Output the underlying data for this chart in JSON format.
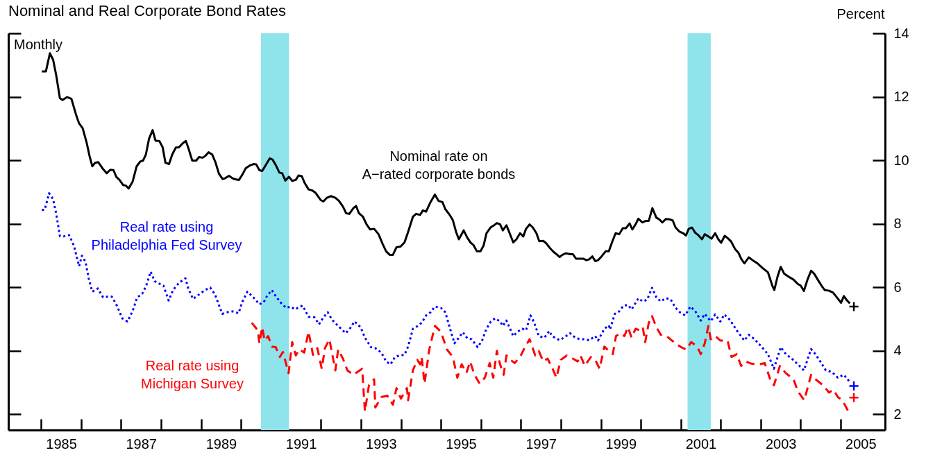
{
  "chart_data": {
    "type": "line",
    "title": "Nominal and Real Corporate Bond Rates",
    "annotations": [
      "Monthly",
      "Percent"
    ],
    "xlim": [
      1984.18,
      2006.11
    ],
    "xticks": [
      {
        "value": 1985,
        "label": null
      },
      {
        "value": 1986,
        "label": null
      },
      {
        "value": 1987,
        "label": null
      },
      {
        "value": 1988,
        "label": null
      },
      {
        "value": 1989,
        "label": null
      },
      {
        "value": 1990,
        "label": null
      },
      {
        "value": 1991,
        "label": null
      },
      {
        "value": 1992,
        "label": null
      },
      {
        "value": 1993,
        "label": null
      },
      {
        "value": 1994,
        "label": null
      },
      {
        "value": 1995,
        "label": null
      },
      {
        "value": 1996,
        "label": null
      },
      {
        "value": 1997,
        "label": null
      },
      {
        "value": 1998,
        "label": null
      },
      {
        "value": 1999,
        "label": null
      },
      {
        "value": 2000,
        "label": null
      },
      {
        "value": 2001,
        "label": null
      },
      {
        "value": 2002,
        "label": null
      },
      {
        "value": 2003,
        "label": null
      },
      {
        "value": 2004,
        "label": null
      },
      {
        "value": 2005,
        "label": null
      },
      {
        "value": 1985.5,
        "label": "1985"
      },
      {
        "value": 1987.5,
        "label": "1987"
      },
      {
        "value": 1989.5,
        "label": "1989"
      },
      {
        "value": 1991.5,
        "label": "1991"
      },
      {
        "value": 1993.5,
        "label": "1993"
      },
      {
        "value": 1995.5,
        "label": "1995"
      },
      {
        "value": 1997.5,
        "label": "1997"
      },
      {
        "value": 1999.5,
        "label": "1999"
      },
      {
        "value": 2001.5,
        "label": "2001"
      },
      {
        "value": 2003.5,
        "label": "2003"
      },
      {
        "value": 2005.5,
        "label": "2005"
      }
    ],
    "ylim": [
      1.5,
      14
    ],
    "yticks": [
      2,
      4,
      6,
      8,
      10,
      12,
      14
    ],
    "bands": [
      {
        "axis": "x",
        "from": 1990.5,
        "to": 1991.2,
        "color": "#8fe3eb"
      },
      {
        "axis": "x",
        "from": 2001.17,
        "to": 2001.75,
        "color": "#8fe3eb"
      }
    ],
    "series": [
      {
        "name": "Nominal rate on A−rated corporate bonds",
        "color": "#000000",
        "line_style": "solid",
        "x": [
          1985.02,
          1985.12,
          1985.22,
          1985.3,
          1985.38,
          1985.47,
          1985.54,
          1985.65,
          1985.76,
          1985.87,
          1985.95,
          1986.04,
          1986.14,
          1986.21,
          1986.28,
          1986.35,
          1986.43,
          1986.55,
          1986.64,
          1986.73,
          1986.81,
          1986.88,
          1986.96,
          1987.05,
          1987.12,
          1987.19,
          1987.29,
          1987.39,
          1987.48,
          1987.55,
          1987.62,
          1987.7,
          1987.79,
          1987.86,
          1987.96,
          1988.04,
          1988.11,
          1988.2,
          1988.28,
          1988.37,
          1988.45,
          1988.54,
          1988.62,
          1988.69,
          1988.78,
          1988.88,
          1988.95,
          1989.04,
          1989.11,
          1989.19,
          1989.28,
          1989.36,
          1989.45,
          1989.54,
          1989.6,
          1989.7,
          1989.79,
          1989.86,
          1989.95,
          1990.03,
          1990.12,
          1990.23,
          1990.31,
          1990.38,
          1990.46,
          1990.53,
          1990.62,
          1990.72,
          1990.79,
          1990.87,
          1990.96,
          1991.03,
          1991.11,
          1991.2,
          1991.28,
          1991.37,
          1991.44,
          1991.52,
          1991.59,
          1991.69,
          1991.78,
          1991.86,
          1991.99,
          1992.06,
          1992.15,
          1992.25,
          1992.36,
          1992.45,
          1992.55,
          1992.63,
          1992.71,
          1992.81,
          1992.88,
          1992.95,
          1993.05,
          1993.14,
          1993.23,
          1993.33,
          1993.44,
          1993.54,
          1993.63,
          1993.72,
          1993.8,
          1993.89,
          1993.99,
          1994.09,
          1994.18,
          1994.3,
          1994.38,
          1994.48,
          1994.55,
          1994.63,
          1994.74,
          1994.85,
          1994.94,
          1995.04,
          1995.11,
          1995.23,
          1995.3,
          1995.38,
          1995.45,
          1995.57,
          1995.66,
          1995.74,
          1995.82,
          1995.9,
          1995.99,
          1996.07,
          1996.14,
          1996.24,
          1996.33,
          1996.4,
          1996.48,
          1996.55,
          1996.64,
          1996.72,
          1996.81,
          1996.89,
          1996.98,
          1997.06,
          1997.13,
          1997.22,
          1997.3,
          1997.39,
          1997.46,
          1997.56,
          1997.63,
          1997.73,
          1997.82,
          1997.89,
          1997.97,
          1998.04,
          1998.13,
          1998.23,
          1998.3,
          1998.38,
          1998.47,
          1998.56,
          1998.64,
          1998.71,
          1998.79,
          1998.86,
          1998.93,
          1999.02,
          1999.12,
          1999.2,
          1999.28,
          1999.37,
          1999.46,
          1999.55,
          1999.63,
          1999.72,
          1999.79,
          1999.87,
          1999.94,
          2000.04,
          2000.13,
          2000.2,
          2000.29,
          2000.39,
          2000.46,
          2000.54,
          2000.63,
          2000.72,
          2000.8,
          2000.87,
          2000.96,
          2001.06,
          2001.13,
          2001.2,
          2001.28,
          2001.36,
          2001.43,
          2001.53,
          2001.6,
          2001.69,
          2001.77,
          2001.86,
          2001.94,
          2002.01,
          2002.1,
          2002.18,
          2002.26,
          2002.36,
          2002.44,
          2002.51,
          2002.59,
          2002.7,
          2002.81,
          2002.92,
          2003.04,
          2003.18,
          2003.29,
          2003.34,
          2003.42,
          2003.5,
          2003.59,
          2003.7,
          2003.82,
          2003.93,
          2004.0,
          2004.08,
          2004.17,
          2004.26,
          2004.34,
          2004.45,
          2004.52,
          2004.6,
          2004.71,
          2004.81,
          2004.91,
          2005.01,
          2005.08,
          2005.16,
          2005.23
        ],
        "values": [
          12.8,
          12.8,
          13.37,
          13.17,
          12.66,
          11.95,
          11.9,
          11.99,
          11.93,
          11.45,
          11.16,
          11.01,
          10.55,
          10.14,
          9.81,
          9.92,
          9.94,
          9.72,
          9.59,
          9.7,
          9.69,
          9.48,
          9.38,
          9.22,
          9.2,
          9.11,
          9.33,
          9.81,
          9.96,
          9.99,
          10.18,
          10.68,
          10.95,
          10.62,
          10.6,
          10.41,
          9.92,
          9.88,
          10.18,
          10.4,
          10.41,
          10.53,
          10.61,
          10.36,
          9.99,
          9.99,
          10.1,
          10.08,
          10.14,
          10.25,
          10.18,
          9.94,
          9.57,
          9.41,
          9.43,
          9.51,
          9.43,
          9.4,
          9.38,
          9.54,
          9.75,
          9.84,
          9.88,
          9.87,
          9.69,
          9.66,
          9.85,
          10.06,
          10.02,
          9.85,
          9.61,
          9.59,
          9.36,
          9.48,
          9.35,
          9.38,
          9.52,
          9.5,
          9.29,
          9.08,
          9.05,
          8.98,
          8.75,
          8.7,
          8.82,
          8.87,
          8.82,
          8.72,
          8.54,
          8.33,
          8.31,
          8.49,
          8.56,
          8.33,
          8.22,
          7.98,
          7.82,
          7.84,
          7.67,
          7.37,
          7.13,
          7.02,
          7.02,
          7.26,
          7.28,
          7.41,
          7.74,
          8.22,
          8.31,
          8.28,
          8.42,
          8.38,
          8.68,
          8.92,
          8.72,
          8.68,
          8.46,
          8.26,
          8.11,
          7.74,
          7.51,
          7.79,
          7.56,
          7.41,
          7.32,
          7.13,
          7.13,
          7.32,
          7.7,
          7.88,
          7.95,
          8.02,
          7.98,
          7.79,
          7.95,
          7.7,
          7.41,
          7.51,
          7.7,
          7.6,
          7.84,
          7.98,
          7.88,
          7.7,
          7.45,
          7.46,
          7.39,
          7.23,
          7.11,
          7.04,
          6.95,
          7.02,
          7.07,
          7.04,
          7.04,
          6.9,
          6.9,
          6.9,
          6.85,
          6.88,
          6.97,
          6.82,
          6.85,
          6.97,
          7.13,
          7.13,
          7.41,
          7.7,
          7.67,
          7.86,
          7.86,
          8.01,
          7.82,
          7.98,
          8.16,
          8.04,
          8.09,
          8.09,
          8.49,
          8.19,
          8.14,
          8.04,
          8.15,
          8.14,
          8.1,
          7.88,
          7.76,
          7.7,
          7.63,
          7.84,
          7.88,
          7.72,
          7.65,
          7.51,
          7.67,
          7.6,
          7.53,
          7.7,
          7.51,
          7.4,
          7.62,
          7.54,
          7.44,
          7.2,
          7.09,
          6.9,
          6.75,
          6.94,
          6.84,
          6.75,
          6.61,
          6.47,
          6.05,
          5.91,
          6.33,
          6.64,
          6.42,
          6.33,
          6.24,
          6.1,
          6.05,
          5.88,
          6.24,
          6.52,
          6.42,
          6.19,
          6.05,
          5.91,
          5.89,
          5.83,
          5.67,
          5.51,
          5.72,
          5.58,
          5.49
        ]
      },
      {
        "name": "Real rate using Philadelphia Fed Survey",
        "color": "#0000ff",
        "line_style": "dotted",
        "x": [
          1985.02,
          1985.09,
          1985.2,
          1985.3,
          1985.38,
          1985.47,
          1985.56,
          1985.7,
          1985.82,
          1985.95,
          1986.02,
          1986.11,
          1986.19,
          1986.28,
          1986.42,
          1986.55,
          1986.66,
          1986.77,
          1986.88,
          1987.03,
          1987.16,
          1987.29,
          1987.4,
          1987.53,
          1987.63,
          1987.74,
          1987.84,
          1987.96,
          1988.06,
          1988.19,
          1988.3,
          1988.45,
          1988.61,
          1988.68,
          1988.8,
          1988.95,
          1989.1,
          1989.23,
          1989.35,
          1989.53,
          1989.64,
          1989.79,
          1989.94,
          1990.03,
          1990.16,
          1990.31,
          1990.46,
          1990.57,
          1990.65,
          1990.77,
          1990.87,
          1990.98,
          1991.13,
          1991.24,
          1991.35,
          1991.54,
          1991.69,
          1991.84,
          1991.95,
          1992.06,
          1992.17,
          1992.28,
          1992.43,
          1992.62,
          1992.73,
          1992.84,
          1992.99,
          1993.1,
          1993.25,
          1993.36,
          1993.51,
          1993.63,
          1993.74,
          1993.85,
          1993.96,
          1994.09,
          1994.18,
          1994.3,
          1994.41,
          1994.52,
          1994.63,
          1994.74,
          1994.85,
          1995.0,
          1995.11,
          1995.23,
          1995.34,
          1995.45,
          1995.55,
          1995.66,
          1995.77,
          1995.92,
          1996.03,
          1996.14,
          1996.25,
          1996.36,
          1996.48,
          1996.55,
          1996.64,
          1996.81,
          1996.92,
          1997.04,
          1997.13,
          1997.24,
          1997.33,
          1997.45,
          1997.59,
          1997.71,
          1997.78,
          1997.97,
          1998.1,
          1998.23,
          1998.38,
          1998.56,
          1998.71,
          1998.86,
          1998.93,
          1999.09,
          1999.2,
          1999.23,
          1999.35,
          1999.46,
          1999.57,
          1999.68,
          1999.77,
          1999.94,
          2000.05,
          2000.16,
          2000.28,
          2000.39,
          2000.5,
          2000.61,
          2000.74,
          2000.87,
          2000.98,
          2001.11,
          2001.24,
          2001.36,
          2001.5,
          2001.6,
          2001.75,
          2001.86,
          2001.99,
          2002.09,
          2002.23,
          2002.4,
          2002.59,
          2002.7,
          2002.85,
          2003.03,
          2003.18,
          2003.33,
          2003.5,
          2003.63,
          2003.78,
          2003.93,
          2004.08,
          2004.26,
          2004.37,
          2004.49,
          2004.63,
          2004.78,
          2004.93,
          2005.08,
          2005.23
        ],
        "values": [
          8.44,
          8.44,
          8.96,
          8.77,
          8.3,
          7.61,
          7.6,
          7.64,
          7.31,
          6.66,
          6.99,
          6.8,
          6.28,
          5.86,
          5.96,
          5.68,
          5.7,
          5.7,
          5.46,
          5.02,
          4.92,
          5.25,
          5.67,
          5.8,
          6.05,
          6.49,
          6.19,
          6.11,
          6.05,
          5.58,
          5.91,
          6.14,
          6.28,
          5.96,
          5.63,
          5.77,
          5.91,
          5.99,
          5.77,
          5.16,
          5.21,
          5.24,
          5.18,
          5.53,
          5.86,
          5.68,
          5.46,
          5.53,
          5.72,
          5.91,
          5.72,
          5.53,
          5.35,
          5.39,
          5.3,
          5.42,
          5.07,
          5.05,
          4.83,
          5.05,
          5.21,
          4.97,
          4.78,
          4.55,
          4.71,
          4.92,
          4.74,
          4.41,
          4.11,
          4.08,
          3.94,
          3.66,
          3.57,
          3.8,
          3.85,
          3.87,
          4.13,
          4.69,
          4.77,
          4.88,
          5.11,
          5.21,
          5.39,
          5.35,
          5.21,
          4.69,
          4.23,
          4.41,
          4.58,
          4.39,
          4.36,
          4.11,
          4.32,
          4.69,
          4.92,
          5.02,
          4.92,
          4.78,
          4.95,
          4.46,
          4.6,
          4.69,
          4.64,
          5.11,
          4.9,
          4.46,
          4.41,
          4.62,
          4.46,
          4.33,
          4.43,
          4.55,
          4.39,
          4.36,
          4.33,
          4.46,
          4.32,
          4.69,
          4.8,
          4.67,
          5.16,
          5.24,
          5.42,
          5.44,
          5.3,
          5.65,
          5.55,
          5.61,
          5.98,
          5.68,
          5.55,
          5.65,
          5.63,
          5.35,
          5.21,
          5.11,
          5.39,
          5.25,
          4.95,
          5.16,
          4.93,
          5.14,
          4.92,
          5.14,
          4.97,
          4.64,
          4.32,
          4.5,
          4.36,
          4.11,
          3.89,
          3.43,
          4.11,
          3.89,
          3.75,
          3.57,
          3.38,
          4.05,
          3.89,
          3.66,
          3.38,
          3.33,
          3.15,
          3.24,
          3.01
        ]
      },
      {
        "name": "Real rate using Michigan Survey",
        "color": "#ff0000",
        "line_style": "dashed",
        "x": [
          1990.27,
          1990.42,
          1990.46,
          1990.53,
          1990.59,
          1990.68,
          1990.77,
          1990.87,
          1990.97,
          1991.05,
          1991.19,
          1991.28,
          1991.37,
          1991.46,
          1991.58,
          1991.69,
          1991.8,
          1991.91,
          1992.02,
          1992.1,
          1992.21,
          1992.36,
          1992.43,
          1992.55,
          1992.66,
          1992.81,
          1993.03,
          1993.1,
          1993.2,
          1993.33,
          1993.36,
          1993.51,
          1993.66,
          1993.8,
          1993.89,
          1994.0,
          1994.15,
          1994.18,
          1994.3,
          1994.41,
          1994.48,
          1994.52,
          1994.59,
          1994.71,
          1994.85,
          1995.0,
          1995.15,
          1995.3,
          1995.41,
          1995.52,
          1995.64,
          1995.73,
          1995.84,
          1995.97,
          1996.1,
          1996.22,
          1996.31,
          1996.4,
          1996.48,
          1996.57,
          1996.64,
          1996.74,
          1996.85,
          1997.0,
          1997.11,
          1997.22,
          1997.36,
          1997.45,
          1997.56,
          1997.67,
          1997.78,
          1997.89,
          1998.0,
          1998.15,
          1998.3,
          1998.42,
          1998.49,
          1998.6,
          1998.75,
          1998.86,
          1998.97,
          1999.09,
          1999.2,
          1999.3,
          1999.38,
          1999.49,
          1999.59,
          1999.68,
          1999.77,
          1999.87,
          1999.98,
          2000.05,
          2000.11,
          2000.2,
          2000.28,
          2000.39,
          2000.5,
          2000.65,
          2000.74,
          2000.87,
          2001.01,
          2001.14,
          2001.26,
          2001.36,
          2001.43,
          2001.5,
          2001.6,
          2001.69,
          2001.75,
          2001.86,
          2001.99,
          2002.17,
          2002.27,
          2002.4,
          2002.51,
          2002.62,
          2002.77,
          2002.96,
          2003.1,
          2003.25,
          2003.33,
          2003.48,
          2003.63,
          2003.82,
          2003.93,
          2004.09,
          2004.26,
          2004.37,
          2004.56,
          2004.71,
          2004.82,
          2004.93,
          2005.04,
          2005.2
        ],
        "values": [
          4.88,
          4.64,
          4.23,
          4.74,
          4.32,
          4.46,
          4.13,
          4.11,
          3.8,
          3.96,
          3.29,
          4.27,
          3.85,
          4.04,
          3.94,
          4.6,
          3.87,
          4.08,
          3.43,
          4.08,
          4.36,
          3.38,
          4.04,
          3.75,
          3.38,
          3.24,
          3.43,
          2.09,
          2.91,
          3.1,
          2.21,
          2.54,
          2.58,
          2.3,
          2.82,
          2.49,
          2.82,
          2.44,
          3.38,
          3.71,
          3.57,
          3.8,
          2.96,
          4.04,
          4.78,
          4.6,
          4.04,
          3.8,
          3.15,
          3.57,
          3.3,
          3.66,
          3.24,
          2.96,
          3.15,
          3.61,
          3.15,
          3.99,
          3.57,
          3.24,
          3.85,
          3.71,
          3.61,
          3.85,
          4.13,
          4.36,
          3.85,
          3.99,
          3.66,
          3.75,
          3.47,
          3.15,
          3.71,
          3.85,
          3.75,
          3.66,
          3.85,
          3.52,
          3.8,
          3.71,
          3.43,
          4.13,
          3.99,
          3.89,
          4.46,
          4.55,
          4.46,
          4.74,
          4.41,
          4.69,
          4.64,
          4.74,
          4.27,
          4.88,
          5.09,
          4.74,
          4.5,
          4.46,
          4.36,
          4.23,
          4.11,
          4.04,
          4.27,
          4.18,
          4.08,
          3.89,
          4.23,
          4.78,
          4.36,
          4.46,
          4.32,
          4.32,
          3.8,
          3.89,
          3.52,
          3.66,
          3.59,
          3.57,
          3.61,
          3.05,
          2.91,
          3.52,
          3.29,
          3.1,
          2.72,
          2.44,
          3.24,
          3.1,
          2.91,
          2.68,
          2.77,
          2.54,
          2.44,
          2.07
        ]
      },
      {
        "type": "scatter",
        "marker": "cross",
        "color": "#000000",
        "x": [
          2005.33
        ],
        "values": [
          5.39
        ]
      },
      {
        "type": "scatter",
        "marker": "cross",
        "color": "#0000ff",
        "x": [
          2005.33
        ],
        "values": [
          2.89
        ]
      },
      {
        "type": "scatter",
        "marker": "cross",
        "color": "#ff0000",
        "x": [
          2005.33
        ],
        "values": [
          2.52
        ]
      }
    ]
  }
}
